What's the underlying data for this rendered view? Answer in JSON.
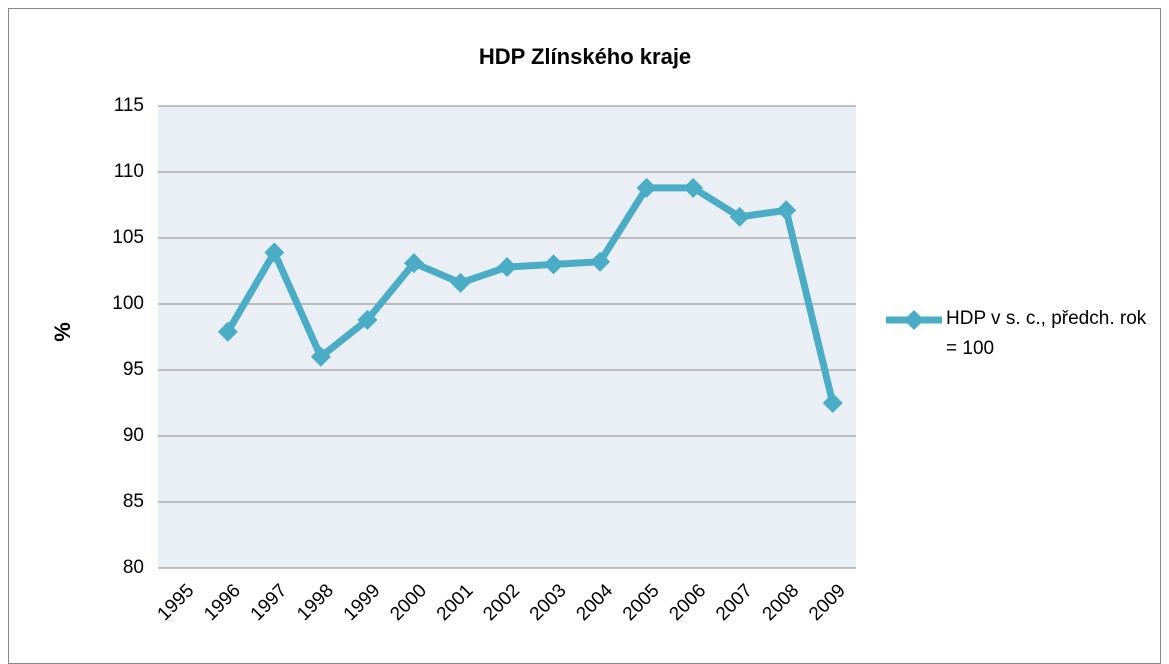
{
  "chart_data": {
    "type": "line",
    "title": "HDP Zlínského kraje",
    "y_label": "%",
    "categories": [
      "1995",
      "1996",
      "1997",
      "1998",
      "1999",
      "2000",
      "2001",
      "2002",
      "2003",
      "2004",
      "2005",
      "2006",
      "2007",
      "2008",
      "2009"
    ],
    "series": [
      {
        "name": "HDP v s. c., předch. rok = 100",
        "color": "#4bacc6",
        "values": [
          null,
          97.9,
          103.9,
          96.0,
          98.8,
          103.1,
          101.6,
          102.8,
          103.0,
          103.2,
          108.8,
          108.8,
          106.6,
          107.1,
          92.5
        ]
      }
    ],
    "ylim": [
      80,
      115
    ],
    "yticks": [
      80,
      85,
      90,
      95,
      100,
      105,
      110,
      115
    ],
    "grid": true,
    "legend": "right"
  }
}
